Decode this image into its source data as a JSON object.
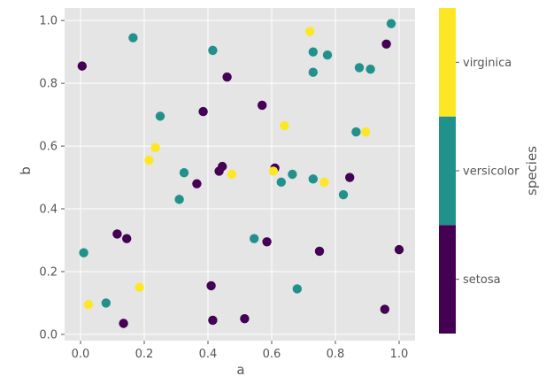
{
  "chart_data": {
    "type": "scatter",
    "title": "",
    "xlabel": "a",
    "ylabel": "b",
    "xlim": [
      -0.05,
      1.05
    ],
    "ylim": [
      -0.02,
      1.04
    ],
    "x_ticks": [
      "0.0",
      "0.2",
      "0.4",
      "0.6",
      "0.8",
      "1.0"
    ],
    "y_ticks": [
      "0.0",
      "0.2",
      "0.4",
      "0.6",
      "0.8",
      "1.0"
    ],
    "grid": true,
    "background": "#e5e5e5",
    "colorbar": {
      "label": "species",
      "categories": [
        "setosa",
        "versicolor",
        "virginica"
      ],
      "colors": [
        "#440154",
        "#21918c",
        "#fde725"
      ]
    },
    "series": [
      {
        "name": "setosa",
        "color": "#440154",
        "x": [
          0.005,
          0.115,
          0.145,
          0.135,
          0.365,
          0.385,
          0.41,
          0.415,
          0.435,
          0.445,
          0.46,
          0.515,
          0.57,
          0.585,
          0.61,
          0.75,
          0.845,
          0.955,
          0.96,
          1.0
        ],
        "y": [
          0.855,
          0.32,
          0.305,
          0.035,
          0.48,
          0.71,
          0.155,
          0.045,
          0.52,
          0.535,
          0.82,
          0.05,
          0.73,
          0.295,
          0.53,
          0.265,
          0.5,
          0.08,
          0.925,
          0.27
        ]
      },
      {
        "name": "versicolor",
        "color": "#21918c",
        "x": [
          0.01,
          0.08,
          0.165,
          0.25,
          0.31,
          0.325,
          0.415,
          0.545,
          0.63,
          0.665,
          0.68,
          0.73,
          0.73,
          0.73,
          0.775,
          0.825,
          0.865,
          0.875,
          0.91,
          0.975
        ],
        "y": [
          0.26,
          0.1,
          0.945,
          0.695,
          0.43,
          0.515,
          0.905,
          0.305,
          0.485,
          0.51,
          0.145,
          0.495,
          0.9,
          0.835,
          0.89,
          0.445,
          0.645,
          0.85,
          0.845,
          0.99
        ]
      },
      {
        "name": "virginica",
        "color": "#fde725",
        "x": [
          0.025,
          0.185,
          0.215,
          0.235,
          0.475,
          0.605,
          0.64,
          0.72,
          0.765,
          0.895
        ],
        "y": [
          0.095,
          0.15,
          0.555,
          0.595,
          0.51,
          0.52,
          0.665,
          0.965,
          0.485,
          0.645
        ]
      }
    ]
  }
}
